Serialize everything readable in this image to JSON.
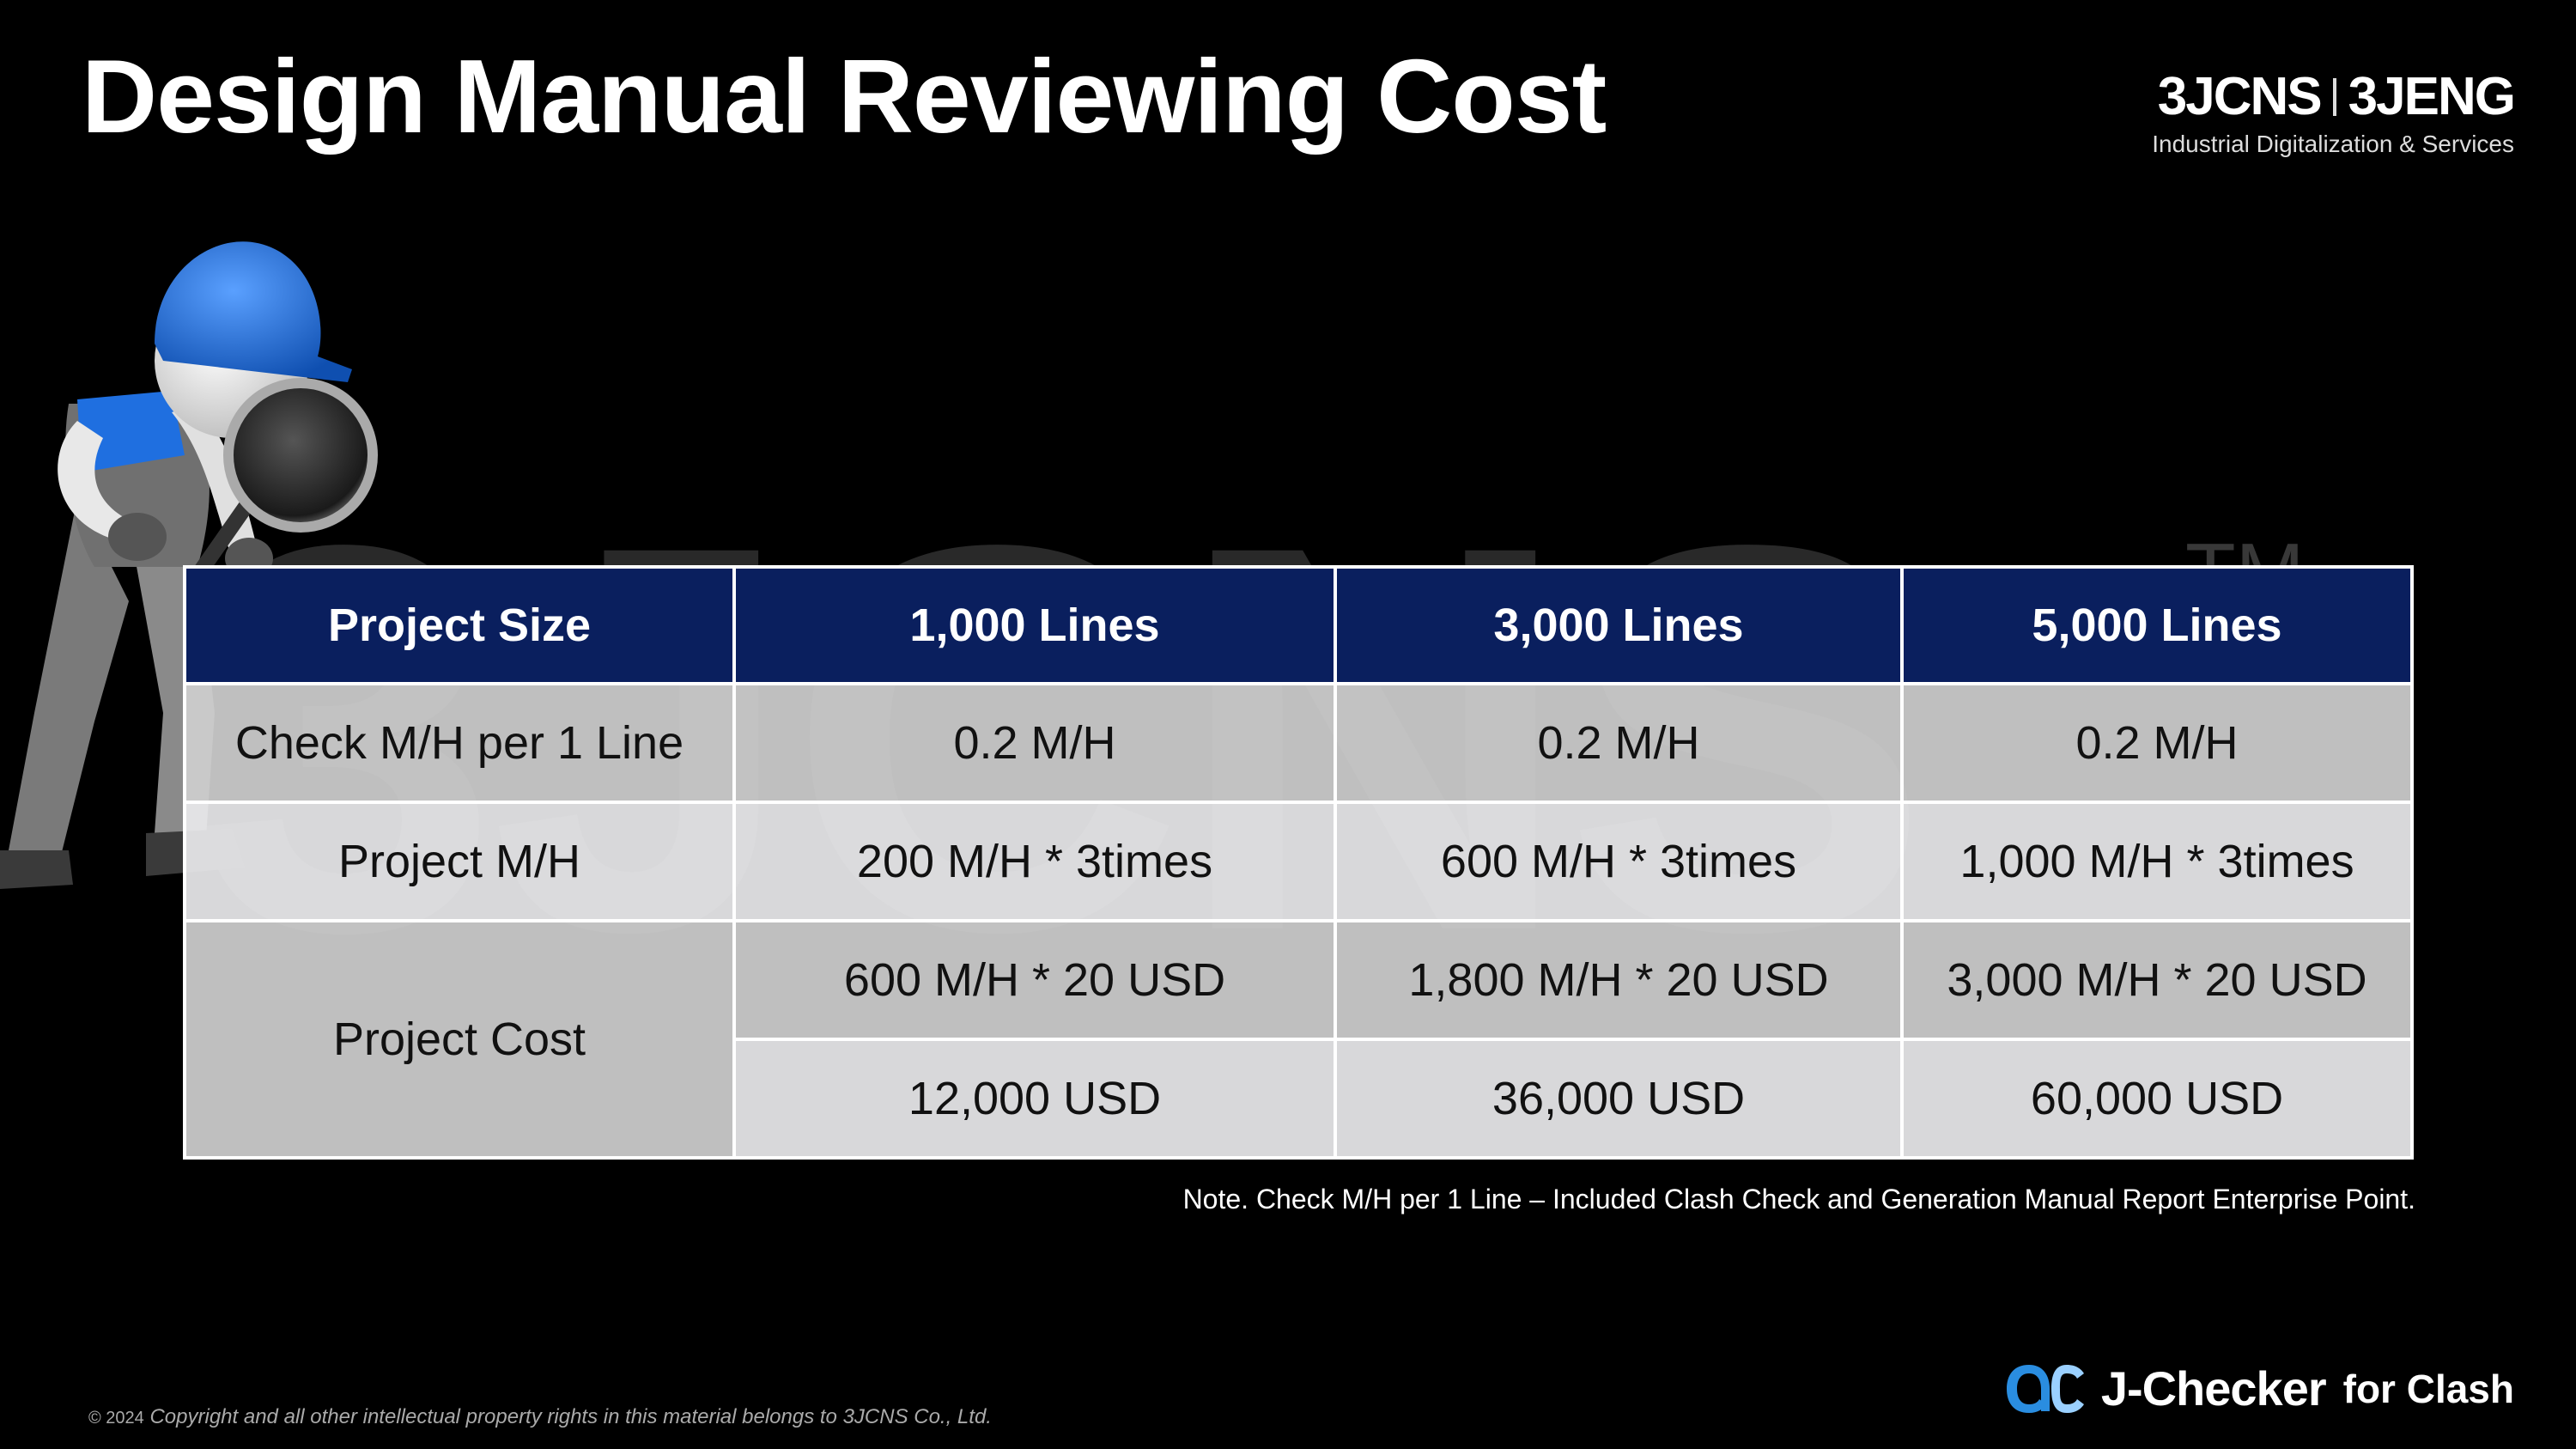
{
  "header": {
    "title": "Design Manual Reviewing Cost",
    "brand_left": "3JCNS",
    "brand_right": "3JENG",
    "brand_tagline": "Industrial Digitalization & Services"
  },
  "watermark": {
    "text": "3JCNS",
    "tm": "TM"
  },
  "table": {
    "headers": [
      "Project Size",
      "1,000 Lines",
      "3,000 Lines",
      "5,000 Lines"
    ],
    "rows": [
      {
        "label": "Check M/H per 1 Line",
        "cells": [
          "0.2 M/H",
          "0.2 M/H",
          "0.2 M/H"
        ]
      },
      {
        "label": "Project M/H",
        "cells": [
          "200 M/H * 3times",
          "600 M/H * 3times",
          "1,000 M/H * 3times"
        ]
      }
    ],
    "cost": {
      "label": "Project Cost",
      "calc": [
        "600 M/H * 20 USD",
        "1,800 M/H * 20 USD",
        "3,000 M/H * 20 USD"
      ],
      "total": [
        "12,000 USD",
        "36,000 USD",
        "60,000 USD"
      ]
    }
  },
  "note": "Note.   Check M/H per 1 Line – Included Clash Check and Generation Manual Report Enterprise Point.",
  "footer": {
    "copyright_mark": "© 2024",
    "copyright_text": "Copyright and all other intellectual property rights in this material belongs to 3JCNS Co., Ltd.",
    "product_logo": "QC",
    "product_name": "J-Checker",
    "product_suffix": "for Clash"
  },
  "colors": {
    "header_bg": "#0a1f5e",
    "helmet": "#1e6fd6",
    "logo_blue": "#2a8de0"
  }
}
